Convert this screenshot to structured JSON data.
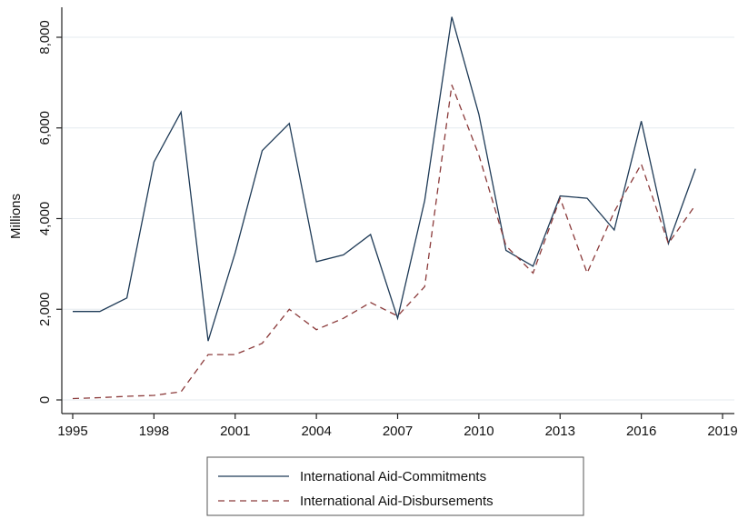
{
  "chart_data": {
    "type": "line",
    "title": "",
    "xlabel": "",
    "ylabel": "Millions",
    "xlim": [
      1995,
      2019
    ],
    "ylim": [
      0,
      8500
    ],
    "x_ticks": [
      "1995",
      "1998",
      "2001",
      "2004",
      "2007",
      "2010",
      "2013",
      "2016",
      "2019"
    ],
    "y_ticks": [
      "0",
      "2,000",
      "4,000",
      "6,000",
      "8,000"
    ],
    "grid": "horizontal",
    "legend_position": "bottom",
    "x": [
      1995,
      1996,
      1997,
      1998,
      1999,
      2000,
      2001,
      2002,
      2003,
      2004,
      2005,
      2006,
      2007,
      2008,
      2009,
      2010,
      2011,
      2012,
      2013,
      2014,
      2015,
      2016,
      2017,
      2018
    ],
    "series": [
      {
        "name": "International Aid-Commitments",
        "color": "#1f3b57",
        "style": "solid",
        "values": [
          1950,
          1950,
          2250,
          5250,
          6350,
          1300,
          3250,
          5500,
          6100,
          3050,
          3200,
          3650,
          1800,
          4400,
          8450,
          6300,
          3300,
          2950,
          4500,
          4450,
          3750,
          6150,
          3450,
          5100
        ]
      },
      {
        "name": "International Aid-Disbursements",
        "color": "#8b3a3a",
        "style": "dashed",
        "values": [
          30,
          50,
          80,
          100,
          180,
          1000,
          1000,
          1250,
          2000,
          1550,
          1800,
          2150,
          1850,
          2500,
          6950,
          5400,
          3400,
          2800,
          4450,
          2800,
          4150,
          5200,
          3450,
          4300
        ]
      }
    ]
  }
}
